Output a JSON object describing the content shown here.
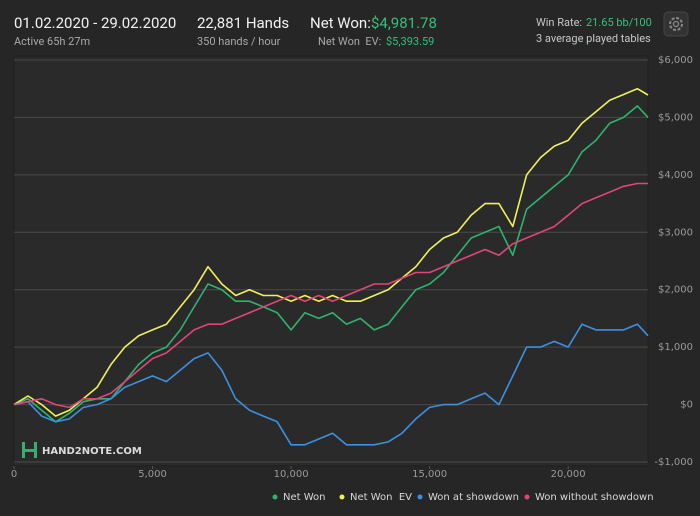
{
  "header": {
    "date_range": "01.02.2020 - 29.02.2020",
    "active": "Active 65h 27m",
    "hands": "22,881 Hands",
    "hands_per_hour": "350 hands / hour",
    "net_won_label": "Net Won:",
    "net_won_value": "$4,981.78",
    "net_won_ev_label": "Net Won  EV:",
    "net_won_ev_value": "$5,393.59",
    "win_rate_label": "Win Rate:",
    "win_rate_value": "21.65 bb/100",
    "tables": "3 average played tables"
  },
  "chart_data": {
    "type": "line",
    "watermark": "HAND2NOTE.COM",
    "x": [
      0,
      500,
      1000,
      1500,
      2000,
      2500,
      3000,
      3500,
      4000,
      4500,
      5000,
      5500,
      6000,
      6500,
      7000,
      7500,
      8000,
      8500,
      9000,
      9500,
      10000,
      10500,
      11000,
      11500,
      12000,
      12500,
      13000,
      13500,
      14000,
      14500,
      15000,
      15500,
      16000,
      16500,
      17000,
      17500,
      18000,
      18500,
      19000,
      19500,
      20000,
      20500,
      21000,
      21500,
      22000,
      22500,
      22881
    ],
    "series": [
      {
        "name": "Net Won",
        "color": "#2fb36e",
        "values": [
          0,
          100,
          -100,
          -300,
          -150,
          50,
          100,
          100,
          400,
          700,
          900,
          1000,
          1300,
          1700,
          2100,
          2000,
          1800,
          1800,
          1700,
          1600,
          1300,
          1600,
          1500,
          1600,
          1400,
          1500,
          1300,
          1400,
          1700,
          2000,
          2100,
          2300,
          2600,
          2900,
          3000,
          3100,
          2600,
          3400,
          3600,
          3800,
          4000,
          4400,
          4600,
          4900,
          5000,
          5200,
          5000
        ]
      },
      {
        "name": "Net Won  EV",
        "color": "#f0f05a",
        "values": [
          0,
          150,
          0,
          -200,
          -100,
          100,
          300,
          700,
          1000,
          1200,
          1300,
          1400,
          1700,
          2000,
          2400,
          2100,
          1900,
          2000,
          1900,
          1900,
          1800,
          1900,
          1800,
          1900,
          1800,
          1800,
          1900,
          2000,
          2200,
          2400,
          2700,
          2900,
          3000,
          3300,
          3500,
          3500,
          3100,
          4000,
          4300,
          4500,
          4600,
          4900,
          5100,
          5300,
          5400,
          5500,
          5390
        ]
      },
      {
        "name": "Won at showdown",
        "color": "#3d8fe0",
        "values": [
          0,
          50,
          -200,
          -300,
          -250,
          -50,
          0,
          100,
          300,
          400,
          500,
          400,
          600,
          800,
          900,
          600,
          100,
          -100,
          -200,
          -300,
          -700,
          -700,
          -600,
          -500,
          -700,
          -700,
          -700,
          -650,
          -500,
          -250,
          -50,
          0,
          0,
          100,
          200,
          0,
          500,
          1000,
          1000,
          1100,
          1000,
          1400,
          1300,
          1300,
          1300,
          1400,
          1200
        ]
      },
      {
        "name": "Won without showdown",
        "color": "#e0457a",
        "values": [
          0,
          50,
          100,
          0,
          -50,
          100,
          100,
          200,
          400,
          600,
          800,
          900,
          1100,
          1300,
          1400,
          1400,
          1500,
          1600,
          1700,
          1800,
          1900,
          1800,
          1900,
          1800,
          1900,
          2000,
          2100,
          2100,
          2200,
          2300,
          2300,
          2400,
          2500,
          2600,
          2700,
          2600,
          2800,
          2900,
          3000,
          3100,
          3300,
          3500,
          3600,
          3700,
          3800,
          3850,
          3850
        ]
      }
    ],
    "xlim": [
      0,
      22881
    ],
    "xticks": [
      0,
      {
        "value": 5000,
        "label": "5,000"
      },
      {
        "value": 10000,
        "label": "10,000"
      },
      {
        "value": 15000,
        "label": "15,000"
      },
      {
        "value": 20000,
        "label": "20,000"
      }
    ],
    "ylim": [
      -1000,
      6000
    ],
    "yticks": [
      {
        "value": -1000,
        "label": "-$1,000"
      },
      {
        "value": 0,
        "label": "$0"
      },
      {
        "value": 1000,
        "label": "$1,000"
      },
      {
        "value": 2000,
        "label": "$2,000"
      },
      {
        "value": 3000,
        "label": "$3,000"
      },
      {
        "value": 4000,
        "label": "$4,000"
      },
      {
        "value": 5000,
        "label": "$5,000"
      },
      {
        "value": 6000,
        "label": "$6,000"
      }
    ],
    "grid": true
  }
}
